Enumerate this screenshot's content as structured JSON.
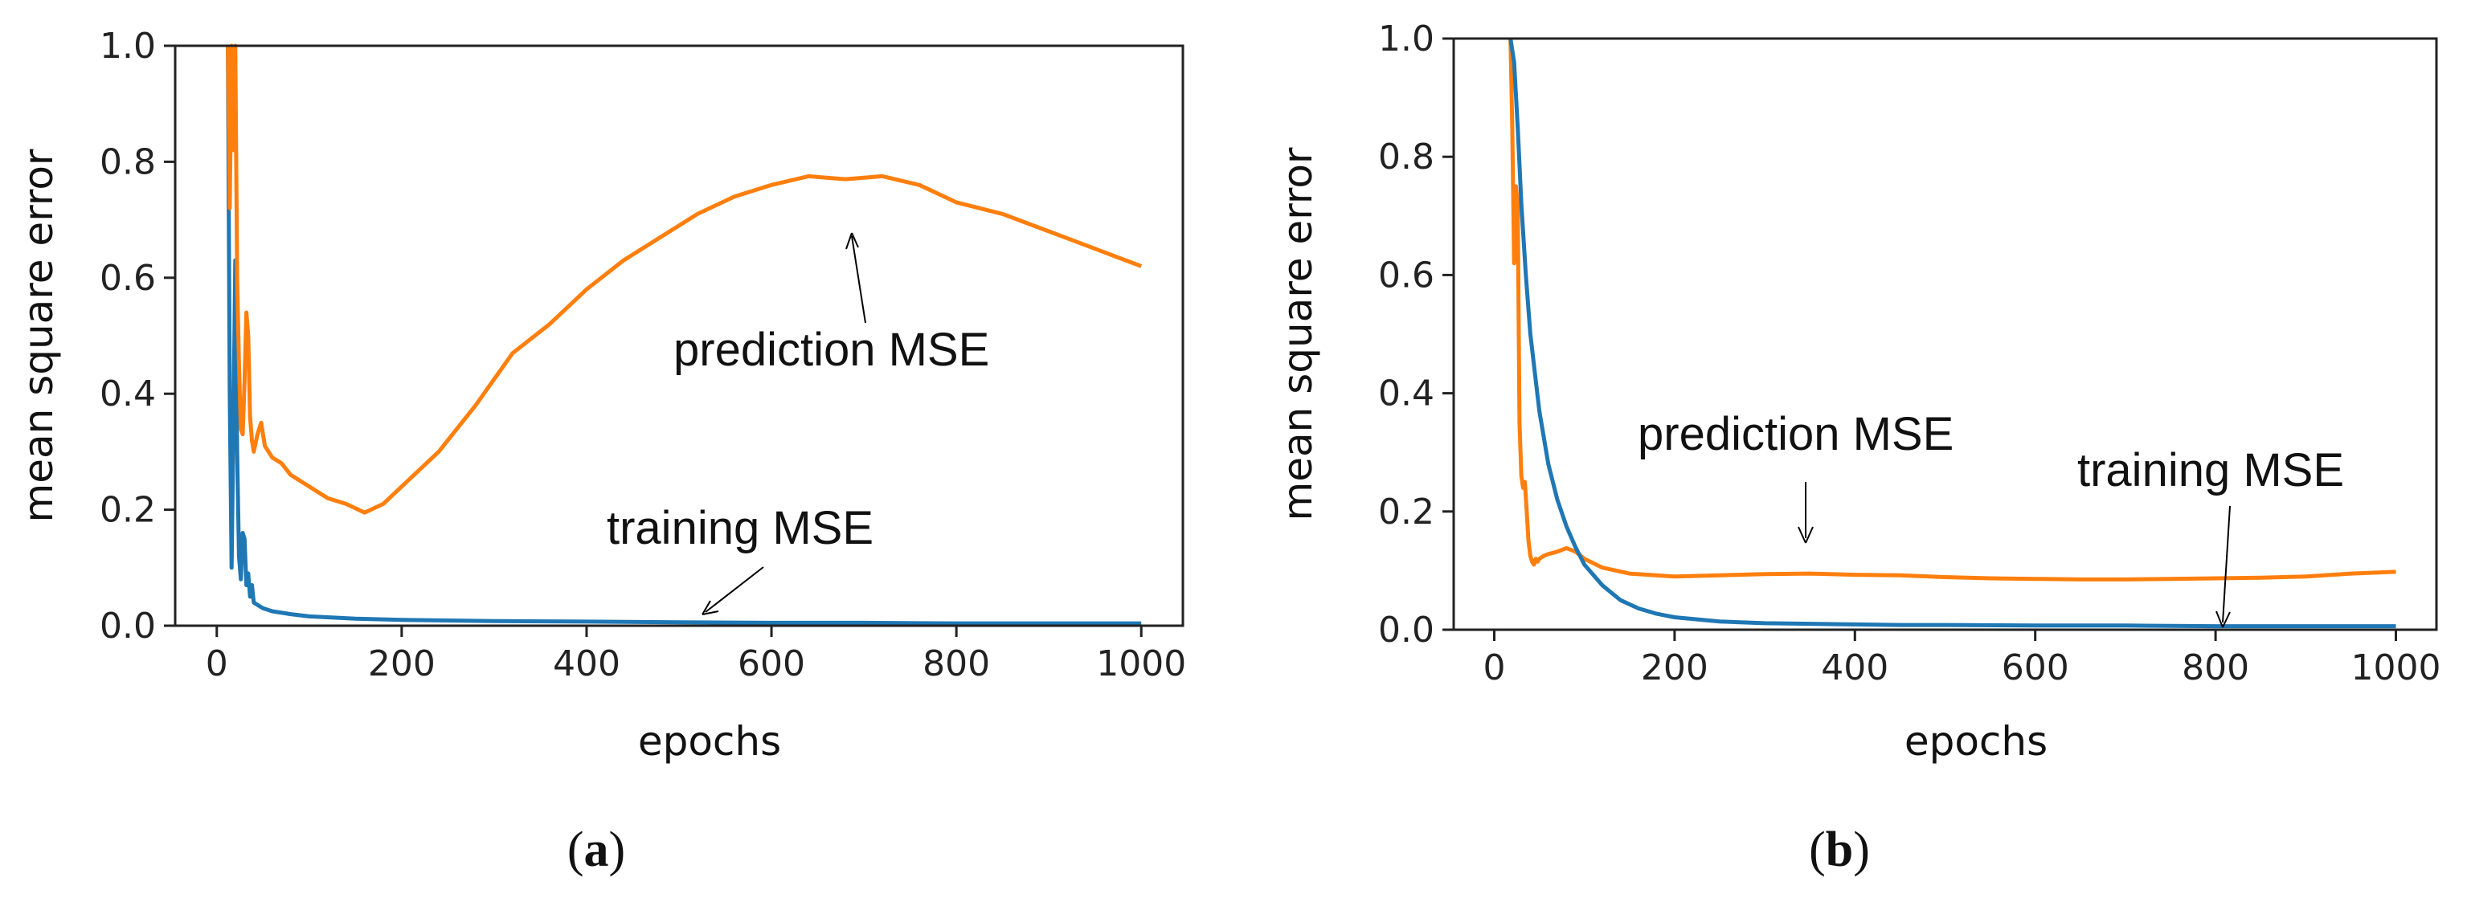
{
  "figure": {
    "caption_a_open": "(",
    "caption_a_letter": "a",
    "caption_a_close": ")",
    "caption_b_open": "(",
    "caption_b_letter": "b",
    "caption_b_close": ")"
  },
  "colors": {
    "training": "#1f77b4",
    "prediction": "#ff7f0e",
    "axes": "#222222"
  },
  "chart_data": [
    {
      "id": "a",
      "type": "line",
      "xlabel": "epochs",
      "ylabel": "mean square error",
      "xlim": [
        -45,
        1045
      ],
      "ylim": [
        0.0,
        1.0
      ],
      "xticks": [
        0,
        200,
        400,
        600,
        800,
        1000
      ],
      "xtick_labels": [
        "0",
        "200",
        "400",
        "600",
        "800",
        "1000"
      ],
      "yticks": [
        0.0,
        0.2,
        0.4,
        0.6,
        0.8,
        1.0
      ],
      "ytick_labels": [
        "0.0",
        "0.2",
        "0.4",
        "0.6",
        "0.8",
        "1.0"
      ],
      "series": [
        {
          "name": "prediction MSE",
          "color": "#ff7f0e",
          "x": [
            12,
            14,
            16,
            18,
            20,
            22,
            24,
            26,
            28,
            30,
            32,
            34,
            36,
            38,
            40,
            44,
            48,
            52,
            56,
            60,
            70,
            80,
            100,
            120,
            140,
            160,
            180,
            200,
            240,
            280,
            320,
            360,
            400,
            440,
            480,
            520,
            560,
            600,
            640,
            680,
            720,
            760,
            800,
            850,
            900,
            950,
            1000
          ],
          "y": [
            1.0,
            0.72,
            1.0,
            0.82,
            1.0,
            0.6,
            0.45,
            0.34,
            0.33,
            0.42,
            0.54,
            0.5,
            0.36,
            0.32,
            0.3,
            0.33,
            0.35,
            0.31,
            0.3,
            0.29,
            0.28,
            0.26,
            0.24,
            0.22,
            0.21,
            0.195,
            0.21,
            0.24,
            0.3,
            0.38,
            0.47,
            0.52,
            0.58,
            0.63,
            0.67,
            0.71,
            0.74,
            0.76,
            0.775,
            0.77,
            0.775,
            0.76,
            0.73,
            0.71,
            0.68,
            0.65,
            0.62
          ]
        },
        {
          "name": "training MSE",
          "color": "#1f77b4",
          "x": [
            12,
            14,
            16,
            18,
            20,
            22,
            24,
            26,
            28,
            30,
            32,
            34,
            36,
            38,
            40,
            45,
            50,
            60,
            80,
            100,
            150,
            200,
            300,
            400,
            500,
            600,
            700,
            800,
            900,
            1000
          ],
          "y": [
            1.0,
            0.4,
            0.1,
            0.35,
            0.63,
            0.3,
            0.12,
            0.08,
            0.16,
            0.15,
            0.07,
            0.09,
            0.05,
            0.07,
            0.04,
            0.035,
            0.03,
            0.025,
            0.02,
            0.016,
            0.012,
            0.01,
            0.008,
            0.007,
            0.006,
            0.005,
            0.005,
            0.004,
            0.004,
            0.004
          ]
        }
      ],
      "annotations": [
        {
          "text": "prediction MSE",
          "target": [
            690,
            0.69
          ]
        },
        {
          "text": "training MSE",
          "target": [
            530,
            0.02
          ]
        }
      ]
    },
    {
      "id": "b",
      "type": "line",
      "xlabel": "epochs",
      "ylabel": "mean square error",
      "xlim": [
        -45,
        1045
      ],
      "ylim": [
        0.0,
        1.0
      ],
      "xticks": [
        0,
        200,
        400,
        600,
        800,
        1000
      ],
      "xtick_labels": [
        "0",
        "200",
        "400",
        "600",
        "800",
        "1000"
      ],
      "yticks": [
        0.0,
        0.2,
        0.4,
        0.6,
        0.8,
        1.0
      ],
      "ytick_labels": [
        "0.0",
        "0.2",
        "0.4",
        "0.6",
        "0.8",
        "1.0"
      ],
      "series": [
        {
          "name": "prediction MSE",
          "color": "#ff7f0e",
          "x": [
            18,
            20,
            22,
            24,
            26,
            28,
            30,
            32,
            34,
            36,
            38,
            40,
            42,
            44,
            46,
            48,
            50,
            55,
            60,
            70,
            80,
            90,
            100,
            120,
            150,
            200,
            250,
            300,
            350,
            400,
            450,
            500,
            550,
            600,
            650,
            700,
            750,
            800,
            850,
            900,
            950,
            1000
          ],
          "y": [
            1.0,
            0.85,
            0.62,
            0.75,
            0.72,
            0.35,
            0.26,
            0.24,
            0.25,
            0.2,
            0.15,
            0.125,
            0.115,
            0.11,
            0.12,
            0.115,
            0.12,
            0.125,
            0.128,
            0.132,
            0.138,
            0.132,
            0.12,
            0.105,
            0.095,
            0.09,
            0.092,
            0.094,
            0.095,
            0.093,
            0.092,
            0.089,
            0.087,
            0.086,
            0.085,
            0.085,
            0.086,
            0.087,
            0.088,
            0.09,
            0.095,
            0.098
          ]
        },
        {
          "name": "training MSE",
          "color": "#1f77b4",
          "x": [
            18,
            22,
            26,
            30,
            35,
            40,
            50,
            60,
            70,
            80,
            90,
            100,
            120,
            140,
            160,
            180,
            200,
            250,
            300,
            350,
            400,
            450,
            500,
            600,
            700,
            800,
            900,
            1000
          ],
          "y": [
            1.0,
            0.96,
            0.85,
            0.72,
            0.6,
            0.5,
            0.37,
            0.28,
            0.22,
            0.175,
            0.14,
            0.11,
            0.075,
            0.05,
            0.036,
            0.027,
            0.021,
            0.014,
            0.011,
            0.01,
            0.009,
            0.008,
            0.008,
            0.007,
            0.007,
            0.006,
            0.006,
            0.006
          ]
        }
      ],
      "annotations": [
        {
          "text": "prediction MSE",
          "target": [
            345,
            0.145
          ]
        },
        {
          "text": "training MSE",
          "target": [
            812,
            0.002
          ]
        }
      ]
    }
  ]
}
